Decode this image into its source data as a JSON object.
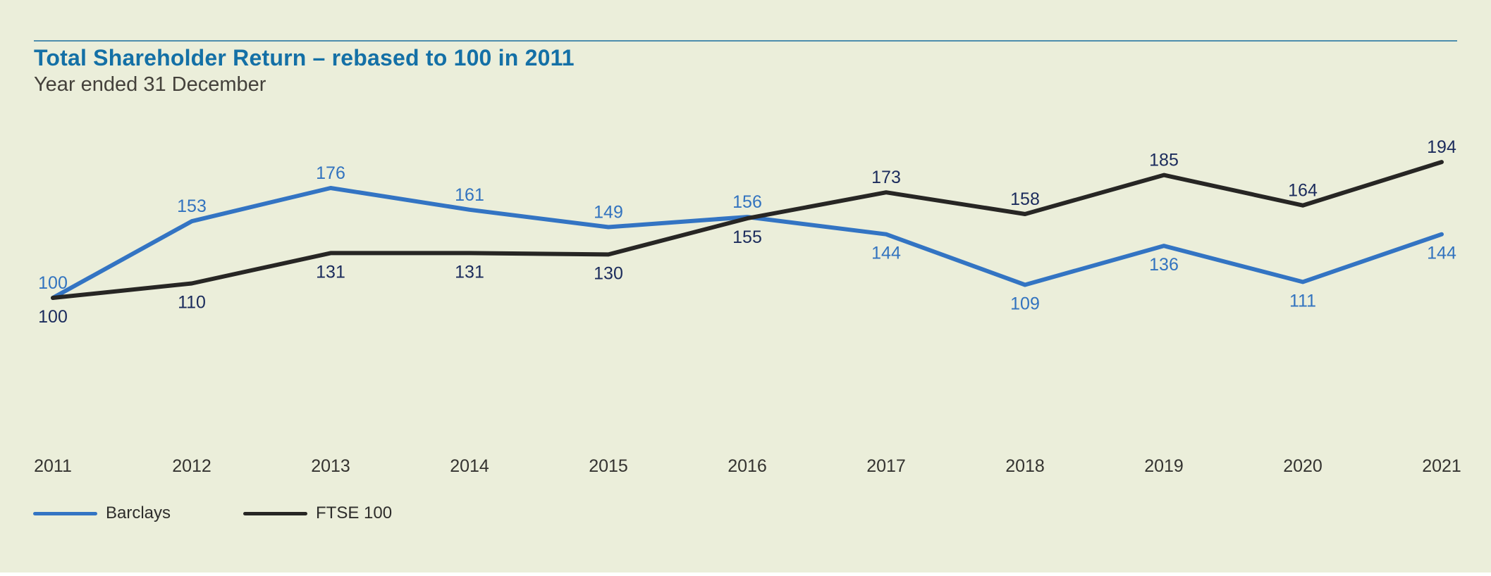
{
  "header": {
    "title": "Total Shareholder Return – rebased to 100 in 2011",
    "subtitle": "Year ended 31 December"
  },
  "chart_data": {
    "type": "line",
    "title": "Total Shareholder Return – rebased to 100 in 2011",
    "subtitle": "Year ended 31 December",
    "categories": [
      "2011",
      "2012",
      "2013",
      "2014",
      "2015",
      "2016",
      "2017",
      "2018",
      "2019",
      "2020",
      "2021"
    ],
    "series": [
      {
        "name": "Barclays",
        "color": "#3374c3",
        "label_color": "#3273bf",
        "values": [
          100,
          153,
          176,
          161,
          149,
          156,
          144,
          109,
          136,
          111,
          144
        ],
        "label_sides": [
          "above",
          "above",
          "above",
          "above",
          "above",
          "above",
          "below",
          "below",
          "below",
          "below",
          "below"
        ]
      },
      {
        "name": "FTSE 100",
        "color": "#272624",
        "label_color": "#1b2b5c",
        "values": [
          100,
          110,
          131,
          131,
          130,
          155,
          173,
          158,
          185,
          164,
          194
        ],
        "label_sides": [
          "below",
          "below",
          "below",
          "below",
          "below",
          "below",
          "above",
          "above",
          "above",
          "above",
          "above"
        ]
      }
    ],
    "xlabel": "",
    "ylabel": "",
    "ylim": [
      90,
      210
    ],
    "grid": false,
    "data_labels": true,
    "legend_position": "bottom-left",
    "axis_label_color": "#343330",
    "accent_rule_color": "#4d8dad",
    "background_color": "#ebeeda"
  }
}
